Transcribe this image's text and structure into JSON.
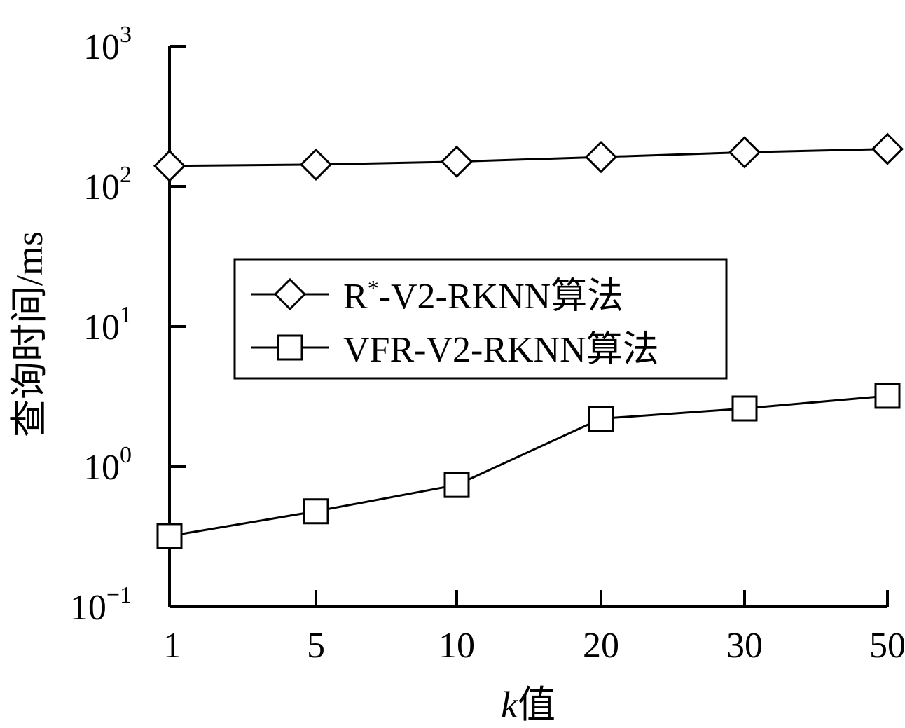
{
  "chart_data": {
    "type": "line",
    "categories": [
      "1",
      "5",
      "10",
      "20",
      "30",
      "50"
    ],
    "y_scale": "log",
    "ylim": [
      0.1,
      1000
    ],
    "y_ticks": [
      {
        "base": "10",
        "exp": "−1"
      },
      {
        "base": "10",
        "exp": "0"
      },
      {
        "base": "10",
        "exp": "1"
      },
      {
        "base": "10",
        "exp": "2"
      },
      {
        "base": "10",
        "exp": "3"
      }
    ],
    "xlabel_italic": "k",
    "xlabel_rest": "值",
    "ylabel": "查询时间/ms",
    "grid": false,
    "legend_position": "center-left",
    "series": [
      {
        "name_base": "R",
        "name_sup": "*",
        "name_rest": "-V2-RKNN算法",
        "marker": "diamond",
        "values": [
          140,
          143,
          150,
          162,
          175,
          185
        ]
      },
      {
        "name": "VFR-V2-RKNN算法",
        "marker": "square",
        "values": [
          0.32,
          0.48,
          0.74,
          2.2,
          2.6,
          3.2
        ]
      }
    ]
  }
}
